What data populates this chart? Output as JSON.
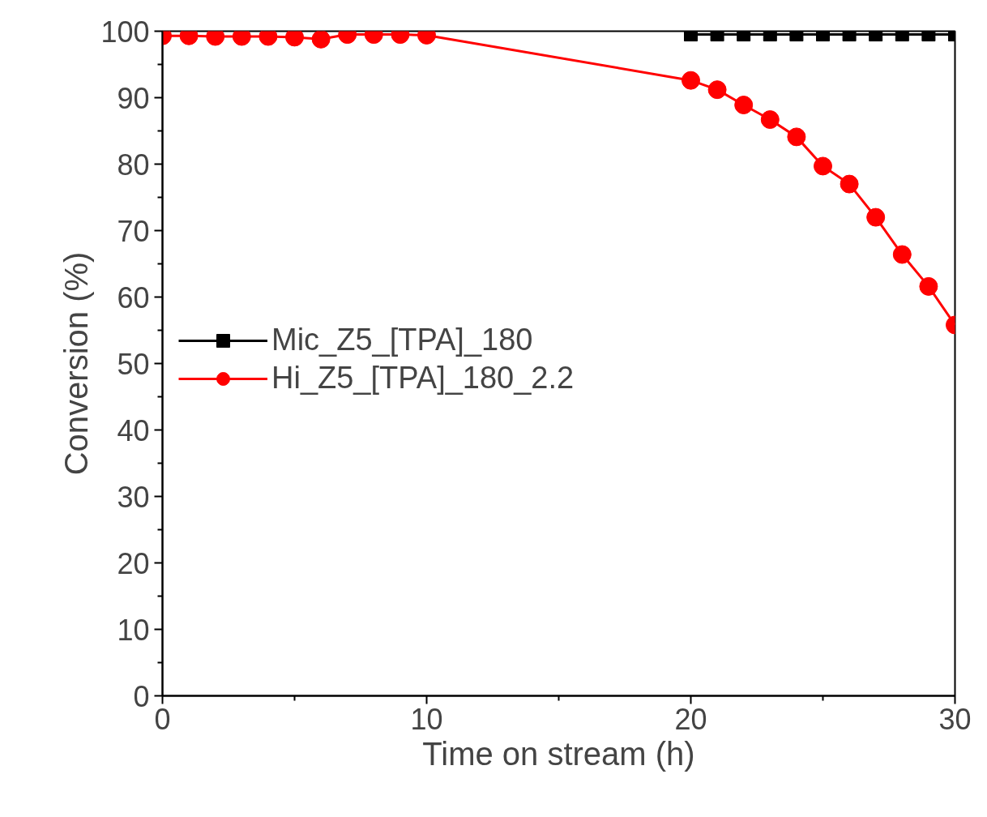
{
  "chart_data": {
    "type": "line",
    "xlabel": "Time on stream (h)",
    "ylabel": "Conversion (%)",
    "xlim": [
      0,
      30
    ],
    "xticks": [
      0,
      10,
      20,
      30
    ],
    "ylim": [
      0,
      100
    ],
    "yticks": [
      0,
      10,
      20,
      30,
      40,
      50,
      60,
      70,
      80,
      90,
      100
    ],
    "grid": false,
    "legend": "left",
    "series": [
      {
        "name": "Mic_Z5_[TPA]_180",
        "color": "#000000",
        "marker": "square",
        "x": [
          20,
          21,
          22,
          23,
          24,
          25,
          26,
          27,
          28,
          29,
          30
        ],
        "values": [
          99.5,
          99.5,
          99.5,
          99.5,
          99.5,
          99.5,
          99.5,
          99.5,
          99.5,
          99.5,
          99.5
        ]
      },
      {
        "name": "Hi_Z5_[TPA]_180_2.2",
        "color": "#ff0000",
        "marker": "circle",
        "x": [
          0,
          1,
          2,
          3,
          4,
          5,
          6,
          7,
          8,
          9,
          10,
          20,
          21,
          22,
          23,
          24,
          25,
          26,
          27,
          28,
          29,
          30
        ],
        "values": [
          99.3,
          99.3,
          99.2,
          99.2,
          99.2,
          99.1,
          98.8,
          99.5,
          99.5,
          99.5,
          99.4,
          92.6,
          91.2,
          88.9,
          86.7,
          84.1,
          79.7,
          77.0,
          72.0,
          66.4,
          61.6,
          55.8
        ]
      }
    ]
  }
}
